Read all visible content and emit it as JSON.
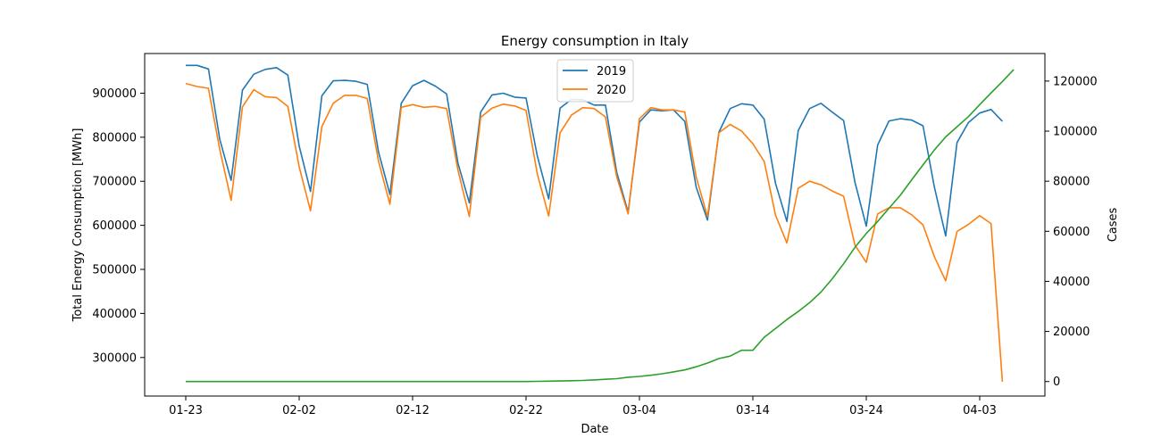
{
  "chart_data": {
    "type": "line",
    "title": "Energy consumption in Italy",
    "xlabel": "Date",
    "ylabel": "Total Energy Consumption [MWh]",
    "ylabel_right": "Cases",
    "start_date": "2020-01-23",
    "x_ticks": [
      "01-23",
      "02-02",
      "02-12",
      "02-22",
      "03-04",
      "03-14",
      "03-24",
      "04-03"
    ],
    "y_ticks_left": [
      300000,
      400000,
      500000,
      600000,
      700000,
      800000,
      900000
    ],
    "y_ticks_right": [
      0,
      20000,
      40000,
      60000,
      80000,
      100000,
      120000
    ],
    "ylim": [
      212500,
      990000
    ],
    "ylim_right": [
      -5800,
      131000
    ],
    "legend": {
      "position": "top-center"
    },
    "grid": false,
    "colors": {
      "s2019": "#1f77b4",
      "s2020": "#ff7f0e",
      "cases": "#2ca02c"
    },
    "series": [
      {
        "name": "2019",
        "axis": "left",
        "values": [
          963000,
          963000,
          955000,
          795000,
          702000,
          907000,
          943000,
          954000,
          958000,
          941000,
          780000,
          677000,
          894000,
          928000,
          929000,
          927000,
          920000,
          766000,
          670000,
          877000,
          917000,
          929000,
          916000,
          898000,
          741000,
          651000,
          857000,
          896000,
          900000,
          891000,
          889000,
          757000,
          660000,
          866000,
          886000,
          885000,
          873000,
          873000,
          720000,
          630000,
          834000,
          862000,
          860000,
          862000,
          836000,
          687000,
          612000,
          811000,
          865000,
          876000,
          873000,
          841000,
          695000,
          609000,
          815000,
          865000,
          877000,
          857000,
          838000,
          698000,
          598000,
          782000,
          837000,
          842000,
          839000,
          826000,
          687000,
          576000,
          788000,
          833000,
          855000,
          863000,
          836000
        ]
      },
      {
        "name": "2020",
        "axis": "left",
        "values": [
          922000,
          915000,
          911000,
          772000,
          657000,
          869000,
          908000,
          892000,
          890000,
          870000,
          733000,
          633000,
          824000,
          877000,
          895000,
          895000,
          888000,
          745000,
          648000,
          868000,
          874000,
          868000,
          870000,
          865000,
          725000,
          620000,
          845000,
          866000,
          875000,
          871000,
          861000,
          716000,
          621000,
          810000,
          850000,
          867000,
          865000,
          846000,
          710000,
          626000,
          842000,
          867000,
          862000,
          862000,
          857000,
          710000,
          620000,
          810000,
          829000,
          814000,
          785000,
          745000,
          623000,
          560000,
          684000,
          700000,
          692000,
          678000,
          666000,
          555000,
          516000,
          626000,
          640000,
          640000,
          624000,
          601000,
          529000,
          474000,
          586000,
          602000,
          622000,
          604000,
          245000
        ]
      },
      {
        "name": "Cases",
        "axis": "right",
        "values": [
          0,
          0,
          0,
          0,
          0,
          0,
          0,
          0,
          0,
          0,
          0,
          0,
          0,
          0,
          0,
          0,
          0,
          0,
          0,
          0,
          0,
          0,
          0,
          0,
          0,
          0,
          0,
          0,
          0,
          0,
          20,
          80,
          150,
          230,
          320,
          450,
          650,
          890,
          1130,
          1700,
          2040,
          2500,
          3090,
          3860,
          4640,
          5880,
          7380,
          9170,
          10150,
          12460,
          12460,
          17660,
          21160,
          24750,
          27980,
          31510,
          35710,
          41040,
          47020,
          53580,
          59140,
          63930,
          69180,
          74390,
          80540,
          86500,
          92470,
          97690,
          101740,
          105790,
          110570,
          115240,
          119830,
          124630
        ]
      }
    ]
  }
}
